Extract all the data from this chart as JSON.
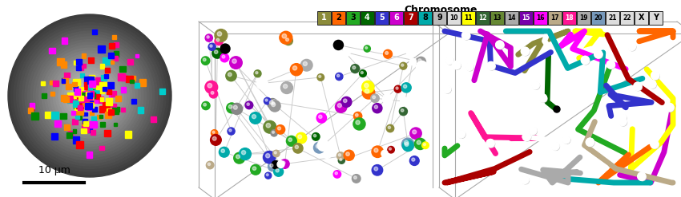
{
  "chromosome_labels": [
    "1",
    "2",
    "3",
    "4",
    "5",
    "6",
    "7",
    "8",
    "9",
    "10",
    "11",
    "12",
    "13",
    "14",
    "15",
    "16",
    "17",
    "18",
    "19",
    "20",
    "21",
    "22",
    "X",
    "Y"
  ],
  "chr_bg_colors": [
    "#8B8B3A",
    "#FF6600",
    "#22AA22",
    "#006600",
    "#3333CC",
    "#CC00CC",
    "#AA0000",
    "#00AAAA",
    "#AAAAAA",
    "#AAAAAA",
    "#FFFF00",
    "#336633",
    "#668833",
    "#AAAAAA",
    "#7700AA",
    "#FF00FF",
    "#BBAA88",
    "#FF1493",
    "#AAAAAA",
    "#7799BB",
    "#DDDDDD",
    "#DDDDDD",
    "#DDDDDD",
    "#DDDDDD"
  ],
  "chr_text_colors": [
    "#000000",
    "#000000",
    "#000000",
    "#FFFFFF",
    "#FFFFFF",
    "#FFFFFF",
    "#FFFFFF",
    "#000000",
    "#000000",
    "#000000",
    "#000000",
    "#FFFFFF",
    "#000000",
    "#000000",
    "#FFFFFF",
    "#000000",
    "#000000",
    "#FFFFFF",
    "#000000",
    "#FFFFFF",
    "#000000",
    "#000000",
    "#000000",
    "#000000"
  ],
  "nucleus_colors": [
    "#FFFF00",
    "#FF00FF",
    "#00CCCC",
    "#FF0000",
    "#008800",
    "#FF8800",
    "#0000FF",
    "#FF0099"
  ],
  "ball_colors": [
    "#8B8B3A",
    "#FF6600",
    "#22AA22",
    "#006600",
    "#3333CC",
    "#CC00CC",
    "#AA0000",
    "#00AAAA",
    "#FFFFFF",
    "#FFFF00",
    "#336633",
    "#668833",
    "#AAAAAA",
    "#7700AA",
    "#FF00FF",
    "#BBAA88",
    "#FF1493",
    "#AAAAAA",
    "#7799BB",
    "#FF6600",
    "#22AA22",
    "#3333CC",
    "#FFFFFF",
    "#FFFF00"
  ],
  "scale_bar_label": "10 μm",
  "chr_title": "Chromosome",
  "fig_w": 8.5,
  "fig_h": 2.47,
  "dpi": 100
}
